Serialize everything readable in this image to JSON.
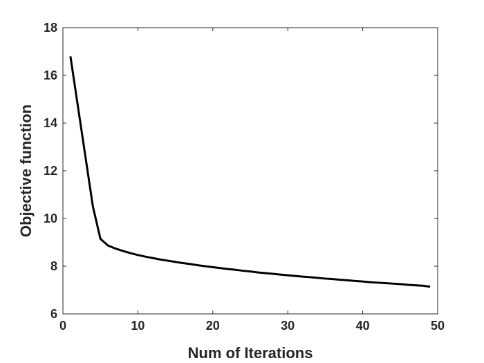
{
  "chart_data": {
    "type": "line",
    "title": "",
    "xlabel": "Num of Iterations",
    "ylabel": "Objective function",
    "xlim": [
      0,
      50
    ],
    "ylim": [
      6,
      18
    ],
    "xticks": [
      0,
      10,
      20,
      30,
      40,
      50
    ],
    "yticks": [
      6,
      8,
      10,
      12,
      14,
      16,
      18
    ],
    "grid": false,
    "legend": "none",
    "line_color": "#000000",
    "series": [
      {
        "x": [
          1,
          2,
          3,
          4,
          5,
          6,
          7,
          8,
          9,
          10,
          11,
          12,
          13,
          14,
          15,
          16,
          17,
          18,
          19,
          20,
          21,
          22,
          23,
          24,
          25,
          26,
          27,
          28,
          29,
          30,
          31,
          32,
          33,
          34,
          35,
          36,
          37,
          38,
          39,
          40,
          41,
          42,
          43,
          44,
          45,
          46,
          47,
          48,
          49
        ],
        "y": [
          16.8,
          14.7,
          12.6,
          10.5,
          9.15,
          8.87,
          8.74,
          8.64,
          8.55,
          8.47,
          8.4,
          8.34,
          8.28,
          8.23,
          8.18,
          8.13,
          8.09,
          8.04,
          8.0,
          7.96,
          7.92,
          7.88,
          7.85,
          7.81,
          7.78,
          7.74,
          7.71,
          7.68,
          7.65,
          7.62,
          7.59,
          7.56,
          7.54,
          7.51,
          7.48,
          7.46,
          7.43,
          7.41,
          7.38,
          7.36,
          7.33,
          7.31,
          7.29,
          7.27,
          7.25,
          7.22,
          7.2,
          7.18,
          7.14
        ]
      }
    ]
  }
}
